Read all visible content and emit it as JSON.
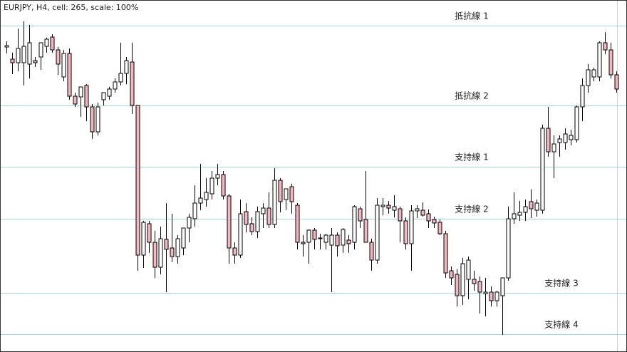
{
  "chart_data": {
    "type": "candlestick",
    "title": "EURJPY, H4, cell: 265, scale: 100%",
    "ylim": [
      0,
      494
    ],
    "up_color": "#ffffff",
    "down_color": "#f4b6c2",
    "level_color": "#a8d4d4",
    "levels": [
      {
        "label": "抵抗線 1",
        "value": 458
      },
      {
        "label": "抵抗線 2",
        "value": 346
      },
      {
        "label": "支持線 1",
        "value": 260
      },
      {
        "label": "支持線 2",
        "value": 187
      },
      {
        "label": "支持線 3",
        "value": 83
      },
      {
        "label": "支持線 4",
        "value": 25
      }
    ],
    "ohlc": [
      [
        428,
        436,
        419,
        430
      ],
      [
        411,
        420,
        390,
        406
      ],
      [
        406,
        454,
        394,
        426
      ],
      [
        406,
        464,
        374,
        429
      ],
      [
        404,
        459,
        384,
        434
      ],
      [
        409,
        414,
        400,
        406
      ],
      [
        414,
        434,
        396,
        434
      ],
      [
        429,
        441,
        420,
        439
      ],
      [
        442,
        446,
        420,
        424
      ],
      [
        424,
        428,
        389,
        404
      ],
      [
        386,
        424,
        380,
        419
      ],
      [
        419,
        426,
        354,
        359
      ],
      [
        359,
        364,
        344,
        348
      ],
      [
        358,
        372,
        330,
        372
      ],
      [
        374,
        376,
        324,
        344
      ],
      [
        344,
        348,
        299,
        309
      ],
      [
        309,
        350,
        304,
        344
      ],
      [
        354,
        364,
        346,
        364
      ],
      [
        359,
        372,
        354,
        369
      ],
      [
        369,
        384,
        364,
        379
      ],
      [
        379,
        434,
        374,
        391
      ],
      [
        391,
        414,
        376,
        409
      ],
      [
        407,
        434,
        334,
        346
      ],
      [
        346,
        346,
        114,
        136
      ],
      [
        136,
        184,
        118,
        182
      ],
      [
        180,
        184,
        139,
        154
      ],
      [
        154,
        170,
        104,
        119
      ],
      [
        119,
        176,
        109,
        159
      ],
      [
        158,
        209,
        84,
        144
      ],
      [
        146,
        194,
        126,
        134
      ],
      [
        134,
        164,
        124,
        159
      ],
      [
        146,
        174,
        136,
        174
      ],
      [
        174,
        194,
        154,
        189
      ],
      [
        187,
        234,
        176,
        209
      ],
      [
        209,
        264,
        199,
        216
      ],
      [
        214,
        244,
        204,
        224
      ],
      [
        222,
        254,
        214,
        244
      ],
      [
        244,
        264,
        234,
        249
      ],
      [
        249,
        254,
        214,
        219
      ],
      [
        219,
        222,
        124,
        146
      ],
      [
        146,
        154,
        124,
        136
      ],
      [
        136,
        214,
        132,
        194
      ],
      [
        197,
        209,
        168,
        179
      ],
      [
        180,
        189,
        164,
        169
      ],
      [
        169,
        204,
        160,
        197
      ],
      [
        194,
        209,
        174,
        202
      ],
      [
        202,
        224,
        174,
        179
      ],
      [
        179,
        258,
        174,
        241
      ],
      [
        241,
        244,
        196,
        211
      ],
      [
        214,
        228,
        199,
        229
      ],
      [
        232,
        236,
        194,
        211
      ],
      [
        206,
        209,
        144,
        154
      ],
      [
        154,
        164,
        134,
        152
      ],
      [
        154,
        172,
        124,
        171
      ],
      [
        171,
        174,
        144,
        158
      ],
      [
        160,
        166,
        144,
        159
      ],
      [
        154,
        166,
        144,
        164
      ],
      [
        150,
        174,
        84,
        164
      ],
      [
        164,
        168,
        134,
        149
      ],
      [
        150,
        174,
        139,
        172
      ],
      [
        157,
        164,
        139,
        152
      ],
      [
        154,
        206,
        144,
        204
      ],
      [
        201,
        204,
        174,
        184
      ],
      [
        186,
        254,
        154,
        154
      ],
      [
        154,
        159,
        114,
        129
      ],
      [
        129,
        216,
        124,
        206
      ],
      [
        204,
        216,
        192,
        206
      ],
      [
        206,
        212,
        194,
        202
      ],
      [
        199,
        220,
        189,
        204
      ],
      [
        201,
        204,
        154,
        184
      ],
      [
        184,
        189,
        144,
        152
      ],
      [
        152,
        206,
        114,
        198
      ],
      [
        198,
        206,
        188,
        201
      ],
      [
        199,
        210,
        190,
        192
      ],
      [
        194,
        200,
        174,
        184
      ],
      [
        186,
        190,
        174,
        181
      ],
      [
        182,
        186,
        164,
        166
      ],
      [
        166,
        170,
        104,
        111
      ],
      [
        114,
        120,
        94,
        104
      ],
      [
        109,
        116,
        64,
        79
      ],
      [
        79,
        132,
        66,
        124
      ],
      [
        102,
        134,
        74,
        129
      ],
      [
        102,
        114,
        86,
        96
      ],
      [
        99,
        106,
        54,
        84
      ],
      [
        82,
        104,
        50,
        84
      ],
      [
        84,
        92,
        64,
        72
      ],
      [
        72,
        86,
        64,
        84
      ],
      [
        79,
        104,
        24,
        104
      ],
      [
        104,
        204,
        100,
        187
      ],
      [
        187,
        224,
        180,
        194
      ],
      [
        192,
        212,
        184,
        196
      ],
      [
        196,
        214,
        184,
        204
      ],
      [
        211,
        228,
        188,
        201
      ],
      [
        199,
        214,
        190,
        209
      ],
      [
        199,
        319,
        194,
        314
      ],
      [
        314,
        344,
        274,
        281
      ],
      [
        281,
        304,
        244,
        292
      ],
      [
        294,
        304,
        274,
        299
      ],
      [
        294,
        314,
        284,
        306
      ],
      [
        298,
        312,
        290,
        304
      ],
      [
        298,
        346,
        294,
        344
      ],
      [
        344,
        384,
        324,
        374
      ],
      [
        374,
        404,
        364,
        396
      ],
      [
        386,
        399,
        380,
        396
      ],
      [
        386,
        436,
        380,
        434
      ],
      [
        434,
        449,
        418,
        424
      ],
      [
        424,
        434,
        384,
        389
      ],
      [
        389,
        394,
        364,
        369
      ]
    ]
  }
}
